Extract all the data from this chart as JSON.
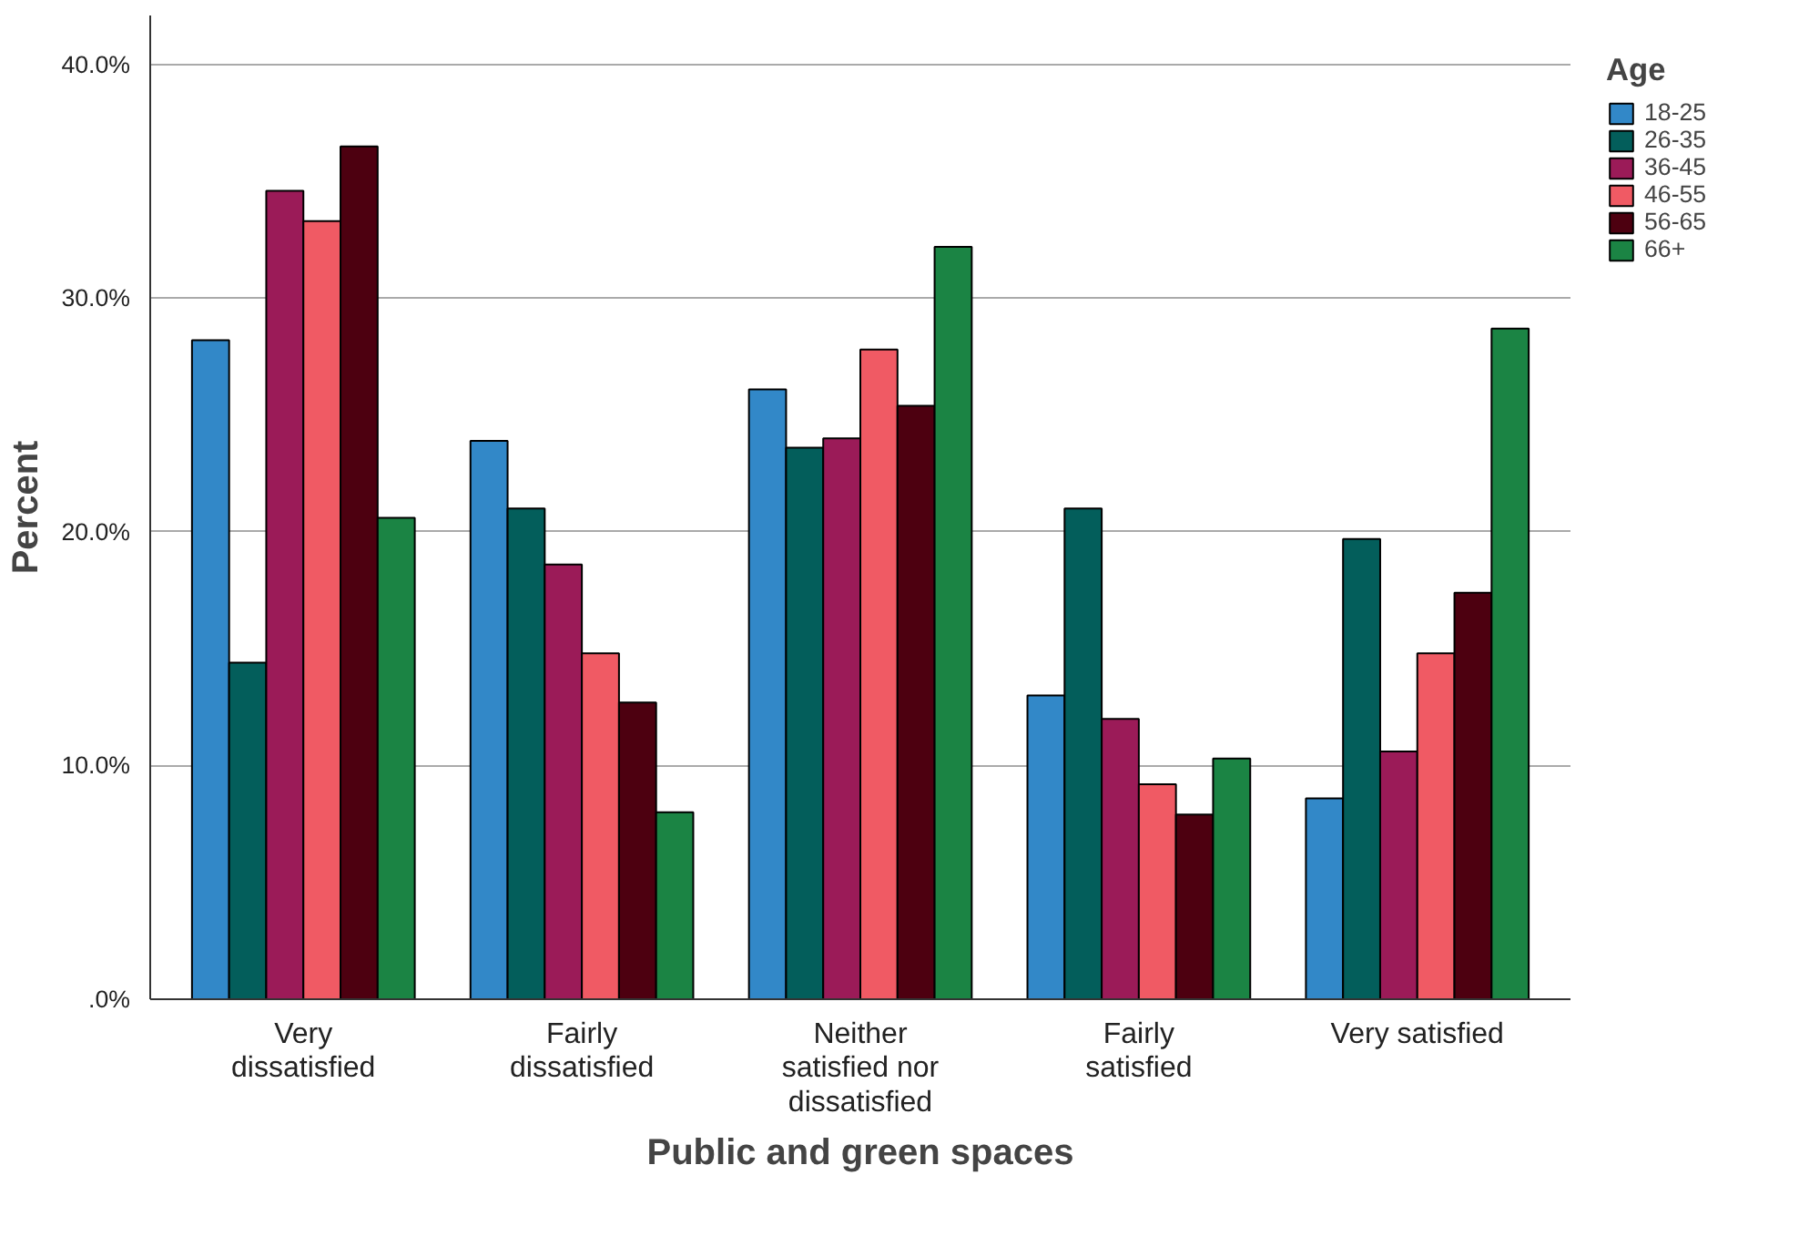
{
  "chart_data": {
    "type": "bar",
    "xlabel": "Public and green spaces",
    "ylabel": "Percent",
    "legend_title": "Age",
    "categories": [
      "Very dissatisfied",
      "Fairly dissatisfied",
      "Neither satisfied nor dissatisfied",
      "Fairly satisfied",
      "Very satisfied"
    ],
    "series": [
      {
        "name": "18-25",
        "color": "#3288c8",
        "values": [
          28.2,
          23.9,
          26.1,
          13.0,
          8.6
        ]
      },
      {
        "name": "26-35",
        "color": "#035e5b",
        "values": [
          14.4,
          21.0,
          23.6,
          21.0,
          19.7
        ]
      },
      {
        "name": "36-45",
        "color": "#9b1b58",
        "values": [
          34.6,
          18.6,
          24.0,
          12.0,
          10.6
        ]
      },
      {
        "name": "46-55",
        "color": "#f05a64",
        "values": [
          33.3,
          14.8,
          27.8,
          9.2,
          14.8
        ]
      },
      {
        "name": "56-65",
        "color": "#4d0010",
        "values": [
          36.5,
          12.7,
          25.4,
          7.9,
          17.4
        ]
      },
      {
        "name": "66+",
        "color": "#1b8444",
        "values": [
          20.6,
          8.0,
          32.2,
          10.3,
          28.7
        ]
      }
    ],
    "ylim": [
      0,
      42.1
    ],
    "yticks": [
      {
        "value": 0,
        "label": ".0%"
      },
      {
        "value": 10,
        "label": "10.0%"
      },
      {
        "value": 20,
        "label": "20.0%"
      },
      {
        "value": 30,
        "label": "30.0%"
      },
      {
        "value": 40,
        "label": "40.0%"
      }
    ],
    "grid": "y",
    "legend": "right"
  }
}
